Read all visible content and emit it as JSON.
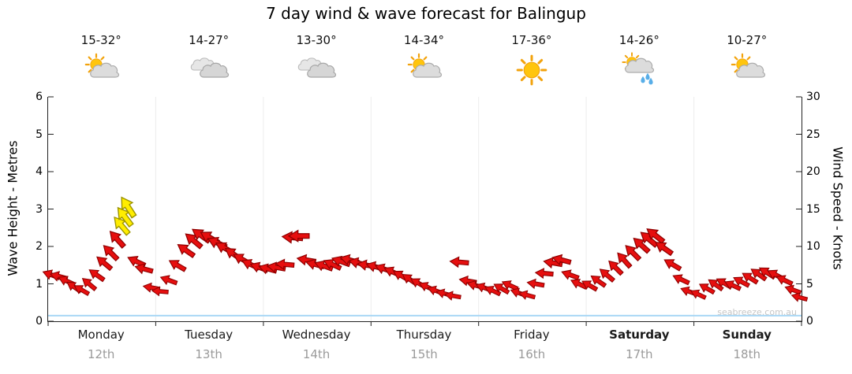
{
  "title": "7 day wind & wave forecast for Balingup",
  "watermark": "seabreeze.com.au",
  "axes": {
    "left_label": "Wave Height - Metres",
    "right_label": "Wind Speed - Knots",
    "left_ticks": [
      0,
      1,
      2,
      3,
      4,
      5,
      6
    ],
    "right_ticks": [
      0,
      5,
      10,
      15,
      20,
      25,
      30
    ]
  },
  "days": [
    {
      "name": "Monday",
      "date": "12th",
      "temp": "15-32°",
      "icon": "partly-cloudy",
      "bold": false
    },
    {
      "name": "Tuesday",
      "date": "13th",
      "temp": "14-27°",
      "icon": "cloudy",
      "bold": false
    },
    {
      "name": "Wednesday",
      "date": "14th",
      "temp": "13-30°",
      "icon": "cloudy",
      "bold": false
    },
    {
      "name": "Thursday",
      "date": "15th",
      "temp": "14-34°",
      "icon": "partly-cloudy",
      "bold": false
    },
    {
      "name": "Friday",
      "date": "16th",
      "temp": "17-36°",
      "icon": "sunny",
      "bold": false
    },
    {
      "name": "Saturday",
      "date": "17th",
      "temp": "14-26°",
      "icon": "showers",
      "bold": true
    },
    {
      "name": "Sunday",
      "date": "18th",
      "temp": "10-27°",
      "icon": "partly-cloudy",
      "bold": true
    }
  ],
  "chart_data": {
    "type": "wind-arrows",
    "x_unit": "days",
    "x_range_days": [
      0,
      7
    ],
    "left_axis": {
      "label": "Wave Height - Metres",
      "ylim": [
        0,
        6
      ]
    },
    "right_axis": {
      "label": "Wind Speed - Knots",
      "ylim": [
        0,
        30
      ]
    },
    "wave_line_m": 0.15,
    "arrow_colors": {
      "red": "#E60F0F",
      "red_outline": "#8F0000",
      "yellow": "#FFED00",
      "yellow_outline": "#9C9400"
    },
    "arrows_format": [
      "t_days",
      "speed_knots",
      "direction_deg",
      "yellow_flag"
    ],
    "arrows": [
      [
        0.03,
        6.2,
        200,
        0
      ],
      [
        0.1,
        6.0,
        195,
        0
      ],
      [
        0.17,
        5.4,
        205,
        0
      ],
      [
        0.24,
        4.6,
        215,
        0
      ],
      [
        0.31,
        4.2,
        210,
        0
      ],
      [
        0.38,
        5.0,
        220,
        0
      ],
      [
        0.45,
        6.2,
        215,
        0
      ],
      [
        0.52,
        7.8,
        220,
        0
      ],
      [
        0.58,
        9.2,
        225,
        0
      ],
      [
        0.64,
        11.0,
        228,
        0
      ],
      [
        0.68,
        12.8,
        230,
        1
      ],
      [
        0.71,
        14.0,
        233,
        1
      ],
      [
        0.74,
        15.3,
        237,
        1
      ],
      [
        0.82,
        8.0,
        205,
        0
      ],
      [
        0.89,
        7.0,
        195,
        0
      ],
      [
        0.96,
        4.5,
        190,
        0
      ],
      [
        1.04,
        4.0,
        185,
        0
      ],
      [
        1.12,
        5.5,
        200,
        0
      ],
      [
        1.2,
        7.5,
        210,
        0
      ],
      [
        1.28,
        9.5,
        215,
        0
      ],
      [
        1.35,
        10.8,
        220,
        0
      ],
      [
        1.42,
        11.5,
        215,
        0
      ],
      [
        1.5,
        11.2,
        210,
        0
      ],
      [
        1.57,
        10.5,
        205,
        0
      ],
      [
        1.64,
        9.8,
        210,
        0
      ],
      [
        1.72,
        9.0,
        215,
        0
      ],
      [
        1.8,
        8.3,
        210,
        0
      ],
      [
        1.88,
        7.6,
        205,
        0
      ],
      [
        1.96,
        7.2,
        200,
        0
      ],
      [
        2.04,
        7.0,
        195,
        0
      ],
      [
        2.12,
        7.2,
        190,
        0
      ],
      [
        2.2,
        7.6,
        185,
        0
      ],
      [
        2.27,
        11.2,
        185,
        0
      ],
      [
        2.33,
        11.4,
        180,
        0
      ],
      [
        2.4,
        8.2,
        190,
        0
      ],
      [
        2.48,
        7.6,
        195,
        0
      ],
      [
        2.56,
        7.4,
        200,
        0
      ],
      [
        2.64,
        7.6,
        205,
        0
      ],
      [
        2.72,
        8.0,
        200,
        0
      ],
      [
        2.8,
        8.2,
        195,
        0
      ],
      [
        2.88,
        7.8,
        195,
        0
      ],
      [
        2.96,
        7.5,
        190,
        0
      ],
      [
        3.04,
        7.3,
        195,
        0
      ],
      [
        3.12,
        7.0,
        200,
        0
      ],
      [
        3.2,
        6.6,
        205,
        0
      ],
      [
        3.28,
        6.1,
        210,
        0
      ],
      [
        3.36,
        5.6,
        215,
        0
      ],
      [
        3.44,
        5.1,
        210,
        0
      ],
      [
        3.52,
        4.6,
        205,
        0
      ],
      [
        3.6,
        4.1,
        200,
        0
      ],
      [
        3.68,
        3.7,
        195,
        0
      ],
      [
        3.76,
        3.4,
        190,
        0
      ],
      [
        3.82,
        7.9,
        185,
        0
      ],
      [
        3.9,
        5.4,
        190,
        0
      ],
      [
        3.97,
        4.8,
        195,
        0
      ],
      [
        4.05,
        4.5,
        200,
        0
      ],
      [
        4.13,
        4.1,
        205,
        0
      ],
      [
        4.21,
        4.4,
        210,
        0
      ],
      [
        4.29,
        4.8,
        205,
        0
      ],
      [
        4.37,
        3.8,
        200,
        0
      ],
      [
        4.45,
        3.5,
        195,
        0
      ],
      [
        4.53,
        5.0,
        190,
        0
      ],
      [
        4.61,
        6.4,
        185,
        0
      ],
      [
        4.69,
        7.8,
        190,
        0
      ],
      [
        4.77,
        8.2,
        195,
        0
      ],
      [
        4.85,
        6.2,
        200,
        0
      ],
      [
        4.93,
        5.0,
        205,
        0
      ],
      [
        5.03,
        4.8,
        210,
        0
      ],
      [
        5.11,
        5.4,
        215,
        0
      ],
      [
        5.19,
        6.2,
        220,
        0
      ],
      [
        5.27,
        7.2,
        225,
        0
      ],
      [
        5.35,
        8.2,
        228,
        0
      ],
      [
        5.43,
        9.2,
        225,
        0
      ],
      [
        5.51,
        10.2,
        222,
        0
      ],
      [
        5.58,
        11.0,
        220,
        0
      ],
      [
        5.64,
        11.5,
        218,
        0
      ],
      [
        5.72,
        9.8,
        215,
        0
      ],
      [
        5.8,
        7.6,
        210,
        0
      ],
      [
        5.88,
        5.6,
        205,
        0
      ],
      [
        5.95,
        4.0,
        200,
        0
      ],
      [
        6.04,
        3.6,
        205,
        0
      ],
      [
        6.12,
        4.4,
        210,
        0
      ],
      [
        6.2,
        4.9,
        215,
        0
      ],
      [
        6.28,
        5.1,
        210,
        0
      ],
      [
        6.36,
        4.8,
        205,
        0
      ],
      [
        6.44,
        5.3,
        208,
        0
      ],
      [
        6.52,
        5.8,
        212,
        0
      ],
      [
        6.6,
        6.3,
        215,
        0
      ],
      [
        6.68,
        6.5,
        212,
        0
      ],
      [
        6.76,
        6.2,
        208,
        0
      ],
      [
        6.84,
        5.5,
        205,
        0
      ],
      [
        6.92,
        4.2,
        200,
        0
      ],
      [
        6.98,
        3.2,
        195,
        0
      ]
    ]
  }
}
